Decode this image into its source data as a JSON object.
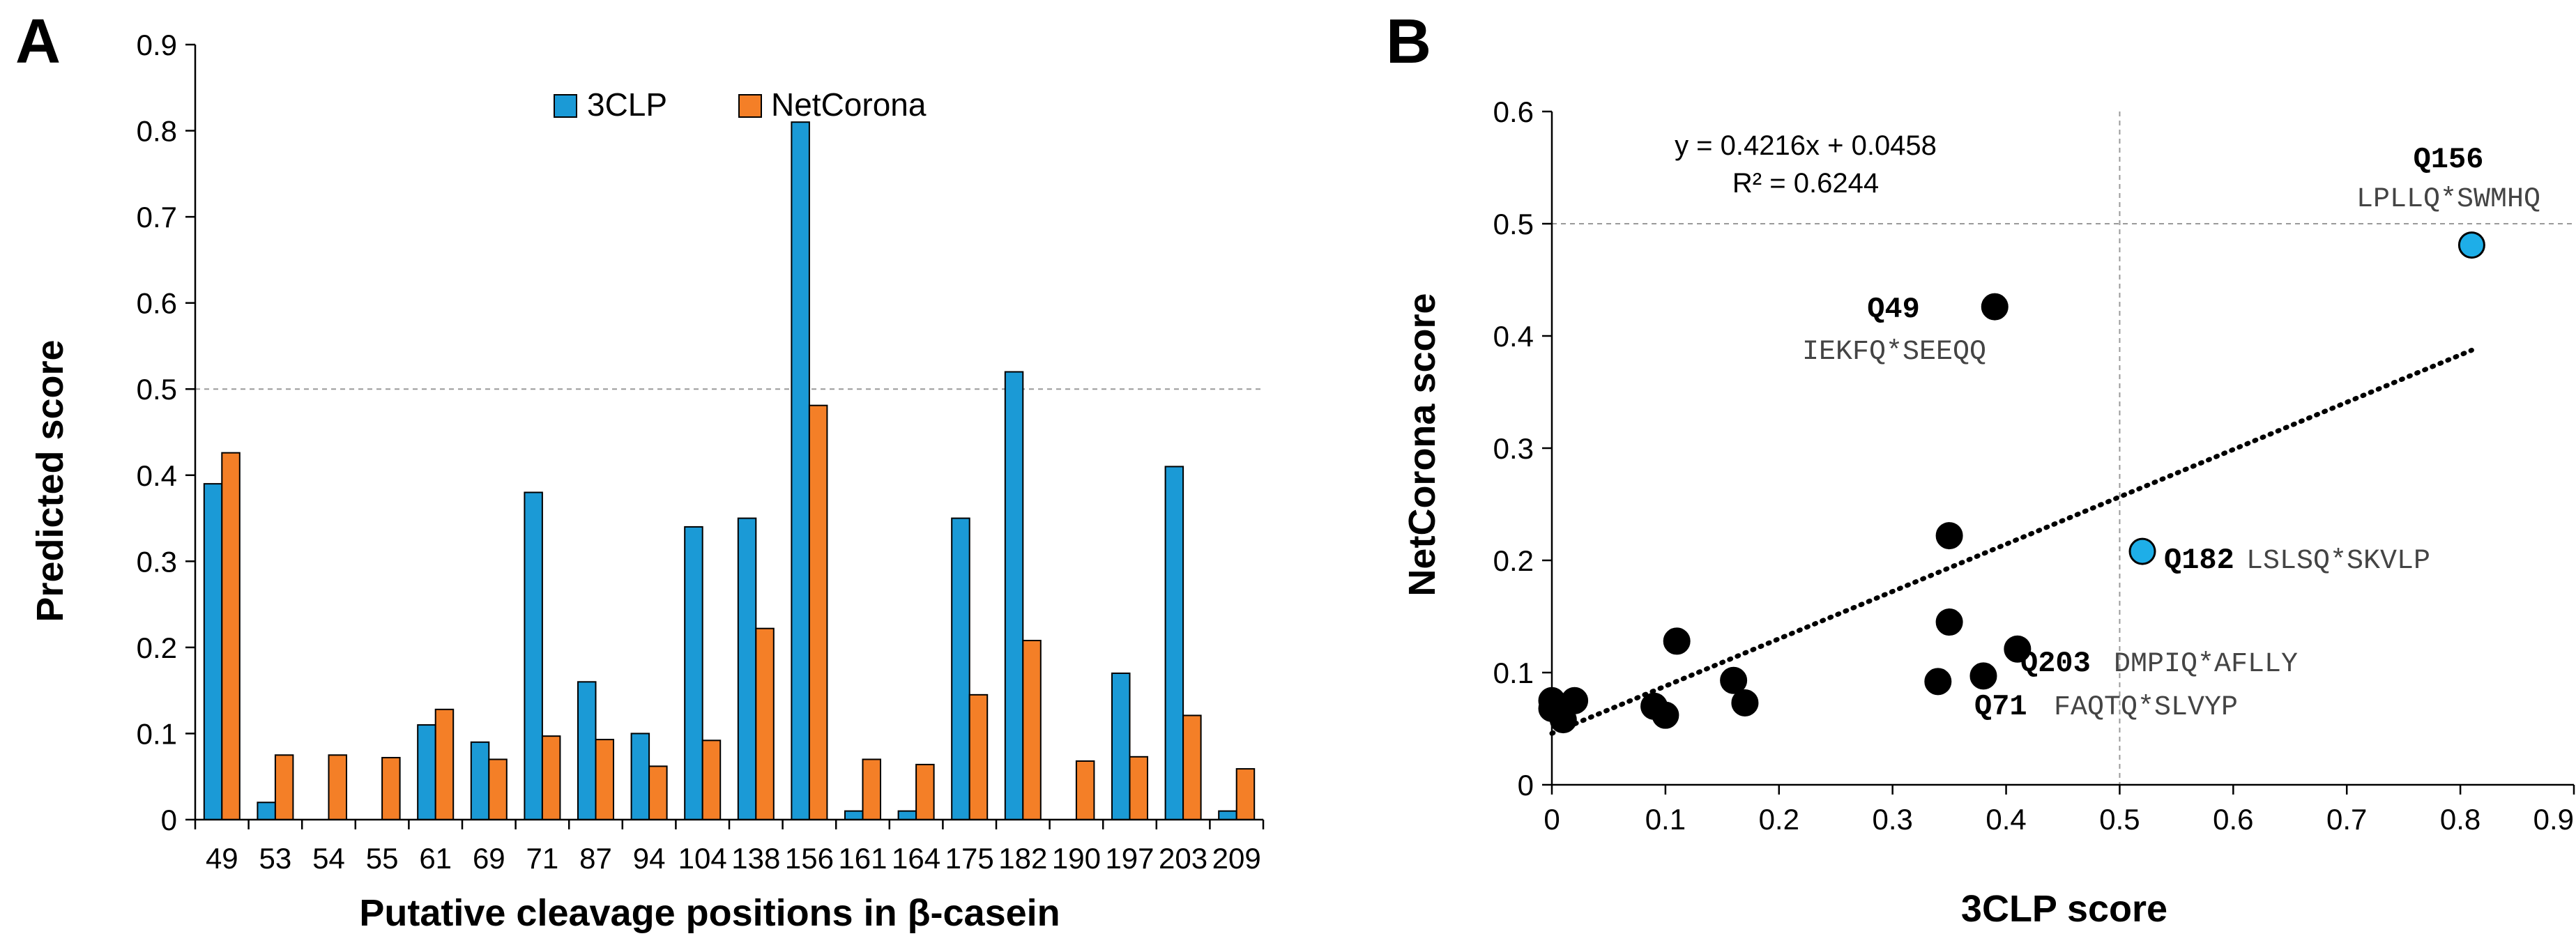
{
  "chart_data": [
    {
      "panel": "A",
      "type": "bar",
      "xlabel": "Putative cleavage positions in β-casein",
      "ylabel": "Predicted score",
      "categories": [
        "49",
        "53",
        "54",
        "55",
        "61",
        "69",
        "71",
        "87",
        "94",
        "104",
        "138",
        "156",
        "161",
        "164",
        "175",
        "182",
        "190",
        "197",
        "203",
        "209"
      ],
      "series": [
        {
          "name": "3CLP",
          "color": "#1b9ad6",
          "values": [
            0.39,
            0.02,
            0,
            0,
            0.11,
            0.09,
            0.38,
            0.16,
            0.1,
            0.34,
            0.35,
            0.81,
            0.01,
            0.01,
            0.35,
            0.52,
            0,
            0.17,
            0.41,
            0.01
          ]
        },
        {
          "name": "NetCorona",
          "color": "#f47f27",
          "values": [
            0.426,
            0.075,
            0.075,
            0.072,
            0.128,
            0.07,
            0.097,
            0.093,
            0.062,
            0.092,
            0.222,
            0.481,
            0.07,
            0.064,
            0.145,
            0.208,
            0.068,
            0.073,
            0.121,
            0.059
          ]
        }
      ],
      "ylim": [
        0,
        0.9
      ],
      "yticks": [
        "0",
        "0.1",
        "0.2",
        "0.3",
        "0.4",
        "0.5",
        "0.6",
        "0.7",
        "0.8",
        "0.9"
      ],
      "threshold": 0.5,
      "legend": "top-center"
    },
    {
      "panel": "B",
      "type": "scatter",
      "xlabel": "3CLP score",
      "ylabel": "NetCorona score",
      "xlim": [
        0,
        0.9
      ],
      "ylim": [
        0,
        0.6
      ],
      "xticks": [
        "0",
        "0.1",
        "0.2",
        "0.3",
        "0.4",
        "0.5",
        "0.6",
        "0.7",
        "0.8",
        "0.9"
      ],
      "yticks": [
        "0",
        "0.1",
        "0.2",
        "0.3",
        "0.4",
        "0.5",
        "0.6"
      ],
      "equation": "y = 0.4216x + 0.0458",
      "r2": "R² = 0.6244",
      "trendline": {
        "slope": 0.4216,
        "intercept": 0.0458,
        "x_range": [
          0,
          0.81
        ]
      },
      "threshold_x": 0.5,
      "threshold_y": 0.5,
      "points": [
        {
          "x": 0.0,
          "y": 0.068,
          "hl": false
        },
        {
          "x": 0.0,
          "y": 0.075,
          "hl": false
        },
        {
          "x": 0.01,
          "y": 0.058,
          "hl": false
        },
        {
          "x": 0.02,
          "y": 0.075,
          "hl": false
        },
        {
          "x": 0.09,
          "y": 0.07,
          "hl": false
        },
        {
          "x": 0.1,
          "y": 0.062,
          "hl": false
        },
        {
          "x": 0.11,
          "y": 0.128,
          "hl": false
        },
        {
          "x": 0.16,
          "y": 0.093,
          "hl": false
        },
        {
          "x": 0.17,
          "y": 0.073,
          "hl": false
        },
        {
          "x": 0.34,
          "y": 0.092,
          "hl": false
        },
        {
          "x": 0.35,
          "y": 0.222,
          "hl": false
        },
        {
          "x": 0.35,
          "y": 0.145,
          "hl": false
        },
        {
          "x": 0.38,
          "y": 0.097,
          "hl": false
        },
        {
          "x": 0.39,
          "y": 0.426,
          "hl": false
        },
        {
          "x": 0.41,
          "y": 0.121,
          "hl": false
        },
        {
          "x": 0.52,
          "y": 0.208,
          "hl": true
        },
        {
          "x": 0.81,
          "y": 0.481,
          "hl": true
        }
      ],
      "annotations": [
        {
          "label": "Q156",
          "seq": "LPLLQ*SWMHQ"
        },
        {
          "label": "Q49",
          "seq": "IEKFQ*SEEQQ"
        },
        {
          "label": "Q182",
          "seq": "LSLSQ*SKVLP"
        },
        {
          "label": "Q203",
          "seq": "DMPIQ*AFLLY"
        },
        {
          "label": "Q71",
          "seq": "FAQTQ*SLVYP"
        }
      ]
    }
  ],
  "panel_labels": [
    "A",
    "B"
  ]
}
